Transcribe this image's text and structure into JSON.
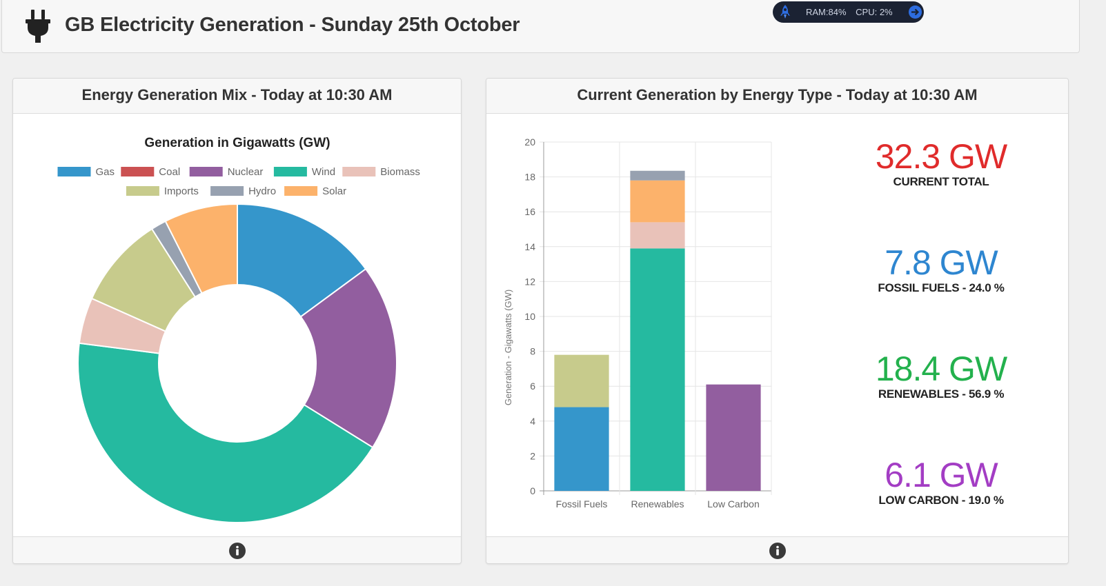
{
  "header": {
    "title": "GB Electricity Generation - Sunday 25th October",
    "plug_icon": "plug-icon"
  },
  "sysmon": {
    "ram_label": "RAM:84%",
    "cpu_label": "CPU: 2%",
    "rocket_icon": "rocket-icon",
    "arrow_icon": "arrow-right-icon"
  },
  "panels": {
    "left": {
      "title": "Energy Generation Mix - Today at 10:30 AM",
      "info_icon": "info-icon"
    },
    "right": {
      "title": "Current Generation by Energy Type - Today at 10:30 AM",
      "info_icon": "info-icon"
    }
  },
  "colors": {
    "Gas": "#3596cb",
    "Coal": "#cb5152",
    "Nuclear": "#925e9f",
    "Wind": "#25baa0",
    "Biomass": "#e9c2b9",
    "Imports": "#c7cb8c",
    "Hydro": "#97a1b0",
    "Solar": "#fcb26b"
  },
  "chart_data": [
    {
      "type": "pie",
      "title": "Generation in Gigawatts (GW)",
      "legend": "top",
      "categories": [
        "Gas",
        "Coal",
        "Nuclear",
        "Wind",
        "Biomass",
        "Imports",
        "Hydro",
        "Solar"
      ],
      "values": [
        4.8,
        0.0,
        6.1,
        13.9,
        1.5,
        3.0,
        0.5,
        2.4
      ],
      "draw_order": [
        "Gas",
        "Nuclear",
        "Wind",
        "Biomass",
        "Imports",
        "Hydro",
        "Solar"
      ]
    },
    {
      "type": "bar",
      "stacked": true,
      "categories": [
        "Fossil Fuels",
        "Renewables",
        "Low Carbon"
      ],
      "ylabel": "Generation - Gigawatts (GW)",
      "ylim": [
        0,
        20
      ],
      "yticks": [
        0,
        2,
        4,
        6,
        8,
        10,
        12,
        14,
        16,
        18,
        20
      ],
      "grid": true,
      "series": [
        {
          "name": "Gas",
          "values": [
            4.8,
            0,
            0
          ]
        },
        {
          "name": "Imports",
          "values": [
            3.0,
            0,
            0
          ]
        },
        {
          "name": "Wind",
          "values": [
            0,
            13.9,
            0
          ]
        },
        {
          "name": "Biomass",
          "values": [
            0,
            1.5,
            0
          ]
        },
        {
          "name": "Solar",
          "values": [
            0,
            2.4,
            0
          ]
        },
        {
          "name": "Hydro",
          "values": [
            0,
            0.55,
            0
          ]
        },
        {
          "name": "Nuclear",
          "values": [
            0,
            0,
            6.1
          ]
        }
      ]
    }
  ],
  "stats": [
    {
      "value": "32.3 GW",
      "label": "CURRENT TOTAL",
      "color": "#e02b2b"
    },
    {
      "value": "7.8 GW",
      "label": "FOSSIL FUELS - 24.0 %",
      "color": "#2e86d0"
    },
    {
      "value": "18.4 GW",
      "label": "RENEWABLES - 56.9 %",
      "color": "#23b14d"
    },
    {
      "value": "6.1 GW",
      "label": "LOW CARBON - 19.0 %",
      "color": "#a33dc4"
    }
  ]
}
